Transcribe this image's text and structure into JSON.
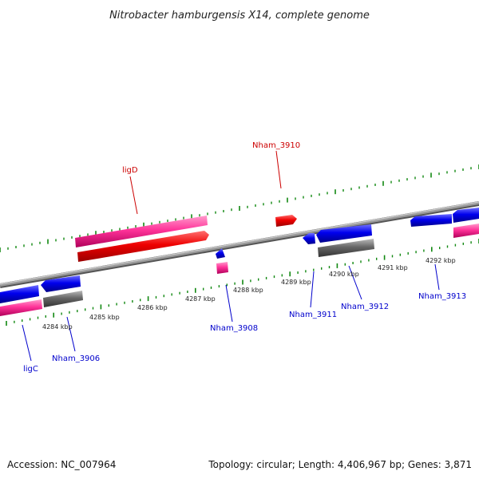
{
  "title": "Nitrobacter hamburgensis X14, complete genome",
  "footer": {
    "accession": "Accession: NC_007964",
    "summary": "Topology: circular; Length: 4,406,967 bp; Genes: 3,871"
  },
  "kbp_labels": [
    "4284 kbp",
    "4285 kbp",
    "4286 kbp",
    "4287 kbp",
    "4288 kbp",
    "4289 kbp",
    "4290 kbp",
    "4291 kbp",
    "4292 kbp"
  ],
  "genes": [
    {
      "label": "ligD",
      "color": "#cc0000"
    },
    {
      "label": "Nham_3910",
      "color": "#cc0000"
    },
    {
      "label": "ligC",
      "color": "#0000cc"
    },
    {
      "label": "Nham_3906",
      "color": "#0000cc"
    },
    {
      "label": "Nham_3908",
      "color": "#0000cc"
    },
    {
      "label": "Nham_3911",
      "color": "#0000cc"
    },
    {
      "label": "Nham_3912",
      "color": "#0000cc"
    },
    {
      "label": "Nham_3913",
      "color": "#0000cc"
    }
  ],
  "colors": {
    "forward_cds": "#ee0000",
    "reverse_cds": "#0000ee",
    "rna_feature": "#ff3399",
    "pseudogene": "#666666",
    "backbone": "#888888",
    "tick": "#118811"
  }
}
